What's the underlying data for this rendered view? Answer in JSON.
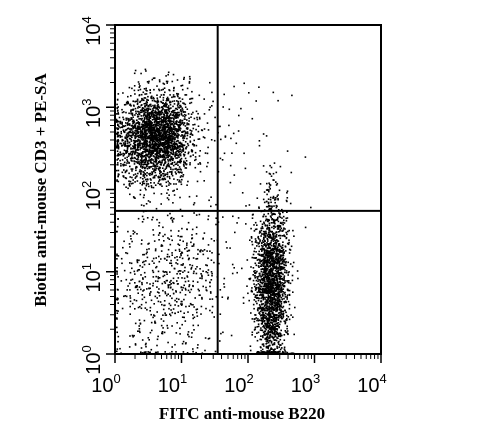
{
  "chart_data": {
    "type": "scatter",
    "title": "",
    "xlabel": "FITC anti-mouse B220",
    "ylabel": "Biotin anti-mouse CD3 + PE-SA",
    "x_scale": "log",
    "y_scale": "log",
    "xlim": [
      1,
      10000
    ],
    "ylim": [
      1,
      10000
    ],
    "x_ticks": [
      {
        "base": "10",
        "exp": "0"
      },
      {
        "base": "10",
        "exp": "1"
      },
      {
        "base": "10",
        "exp": "2"
      },
      {
        "base": "10",
        "exp": "3"
      },
      {
        "base": "10",
        "exp": "4"
      }
    ],
    "y_ticks": [
      {
        "base": "10",
        "exp": "0"
      },
      {
        "base": "10",
        "exp": "1"
      },
      {
        "base": "10",
        "exp": "2"
      },
      {
        "base": "10",
        "exp": "3"
      },
      {
        "base": "10",
        "exp": "4"
      }
    ],
    "quadrant_gates": {
      "x": 35,
      "y": 55
    },
    "grid": false,
    "legend": "none",
    "point_color": "#000000",
    "populations": [
      {
        "center_x": 4,
        "center_y": 450,
        "spread_x_decades": 0.28,
        "spread_y_decades": 0.28,
        "count": 2600
      },
      {
        "center_x": 220,
        "center_y": 7,
        "spread_x_decades": 0.12,
        "spread_y_decades": 0.5,
        "count": 2100
      },
      {
        "center_x": 6,
        "center_y": 8,
        "spread_x_decades": 0.45,
        "spread_y_decades": 0.5,
        "count": 650
      },
      {
        "center_x": 60,
        "center_y": 300,
        "spread_x_decades": 0.5,
        "spread_y_decades": 0.55,
        "count": 70
      }
    ]
  }
}
